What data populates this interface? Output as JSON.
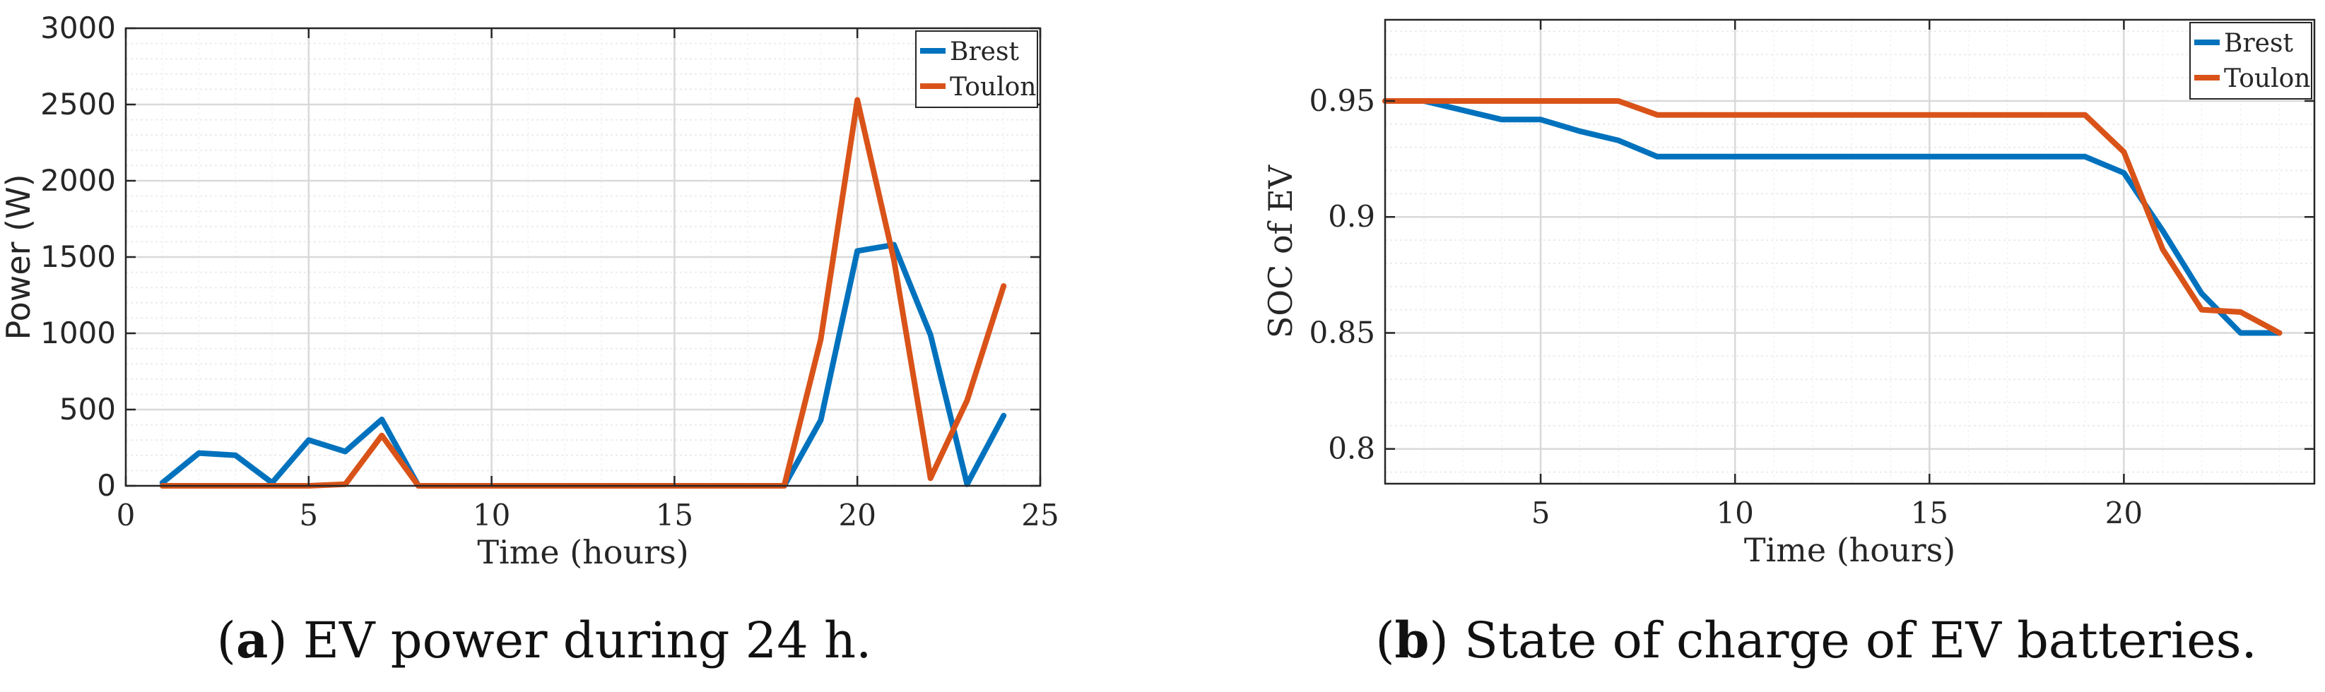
{
  "colors": {
    "brest": "#0072BD",
    "toulon": "#D95319",
    "grid": "#d9d9d9",
    "minor_grid": "#ececec",
    "axis": "#262626"
  },
  "chart_data": [
    {
      "type": "line",
      "xlabel": "Time (hours)",
      "ylabel": "Power (W)",
      "xlim": [
        0,
        25
      ],
      "ylim": [
        0,
        3000
      ],
      "x_ticks": [
        0,
        5,
        10,
        15,
        20,
        25
      ],
      "y_ticks": [
        0,
        500,
        1000,
        1500,
        2000,
        2500,
        3000
      ],
      "legend_position": "top-right",
      "x": [
        1,
        2,
        3,
        4,
        5,
        6,
        7,
        8,
        9,
        10,
        11,
        12,
        13,
        14,
        15,
        16,
        17,
        18,
        19,
        20,
        21,
        22,
        23,
        24
      ],
      "series": [
        {
          "name": "Brest",
          "color": "#0072BD",
          "values": [
            20,
            215,
            200,
            20,
            300,
            225,
            435,
            0,
            0,
            0,
            0,
            0,
            0,
            0,
            0,
            0,
            0,
            0,
            430,
            1540,
            1580,
            990,
            10,
            460
          ]
        },
        {
          "name": "Toulon",
          "color": "#D95319",
          "values": [
            0,
            0,
            0,
            0,
            0,
            10,
            330,
            0,
            0,
            0,
            0,
            0,
            0,
            0,
            0,
            0,
            0,
            0,
            960,
            2530,
            1480,
            50,
            560,
            1310
          ]
        }
      ]
    },
    {
      "type": "line",
      "xlabel": "Time (hours)",
      "ylabel": "SOC of EV",
      "xlim": [
        1,
        24.9
      ],
      "ylim": [
        0.785,
        0.985
      ],
      "x_ticks": [
        5,
        10,
        15,
        20
      ],
      "y_ticks": [
        0.8,
        0.85,
        0.9,
        0.95
      ],
      "legend_position": "top-right",
      "x": [
        1,
        2,
        3,
        4,
        5,
        6,
        7,
        8,
        9,
        10,
        11,
        12,
        13,
        14,
        15,
        16,
        17,
        18,
        19,
        20,
        21,
        22,
        23,
        24
      ],
      "series": [
        {
          "name": "Brest",
          "color": "#0072BD",
          "values": [
            0.95,
            0.95,
            0.946,
            0.942,
            0.942,
            0.937,
            0.933,
            0.926,
            0.926,
            0.926,
            0.926,
            0.926,
            0.926,
            0.926,
            0.926,
            0.926,
            0.926,
            0.926,
            0.926,
            0.919,
            0.894,
            0.867,
            0.85,
            0.85
          ]
        },
        {
          "name": "Toulon",
          "color": "#D95319",
          "values": [
            0.95,
            0.95,
            0.95,
            0.95,
            0.95,
            0.95,
            0.95,
            0.944,
            0.944,
            0.944,
            0.944,
            0.944,
            0.944,
            0.944,
            0.944,
            0.944,
            0.944,
            0.944,
            0.944,
            0.928,
            0.886,
            0.86,
            0.859,
            0.85
          ]
        }
      ]
    }
  ],
  "captions": [
    {
      "label": "a",
      "open": "(",
      "close": ")",
      "text": " EV power during 24 h."
    },
    {
      "label": "b",
      "open": "(",
      "close": ")",
      "text": " State of charge of EV batteries."
    }
  ]
}
